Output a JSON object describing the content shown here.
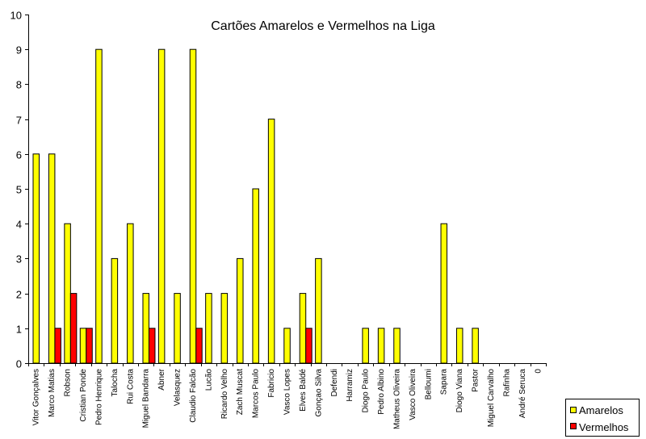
{
  "chart_data": {
    "type": "bar",
    "title": "Cartões Amarelos e Vermelhos na Liga",
    "xlabel": "",
    "ylabel": "",
    "ylim": [
      0,
      10
    ],
    "yticks": [
      0,
      1,
      2,
      3,
      4,
      5,
      6,
      7,
      8,
      9,
      10
    ],
    "grid": false,
    "legend_position": "bottom-right",
    "categories": [
      "Vitor Gonçalves",
      "Marco Matias",
      "Robson",
      "Cristian Ponde",
      "Pedro Henrique",
      "Talocha",
      "Rui Costa",
      "Miguel Bandarra",
      "Abner",
      "Velasquez",
      "Claudio Falcão",
      "Lucão",
      "Ricardo Velho",
      "Zach Muscat",
      "Marcos Paulo",
      "Fabricio",
      "Vasco Lopes",
      "Elves Baldé",
      "Gonçao Silva",
      "Defendi",
      "Harramiz",
      "Diogo Paulo",
      "Pedro Albino",
      "Matheus Oliveira",
      "Vasco Oliveira",
      "Belloumi",
      "Sapara",
      "Diogo Viana",
      "Pastor",
      "Miguel Carvalho",
      "Rafinha",
      "André Seruca",
      "0"
    ],
    "series": [
      {
        "name": "Amarelos",
        "color": "#ffff00",
        "values": [
          6,
          6,
          4,
          1,
          9,
          3,
          4,
          2,
          9,
          2,
          9,
          2,
          2,
          3,
          5,
          7,
          1,
          2,
          3,
          0,
          0,
          1,
          1,
          1,
          0,
          0,
          4,
          1,
          1,
          0,
          0,
          0,
          0
        ]
      },
      {
        "name": "Vermelhos",
        "color": "#ff0000",
        "values": [
          0,
          1,
          2,
          1,
          0,
          0,
          0,
          1,
          0,
          0,
          1,
          0,
          0,
          0,
          0,
          0,
          0,
          1,
          0,
          0,
          0,
          0,
          0,
          0,
          0,
          0,
          0,
          0,
          0,
          0,
          0,
          0,
          0
        ]
      }
    ]
  }
}
